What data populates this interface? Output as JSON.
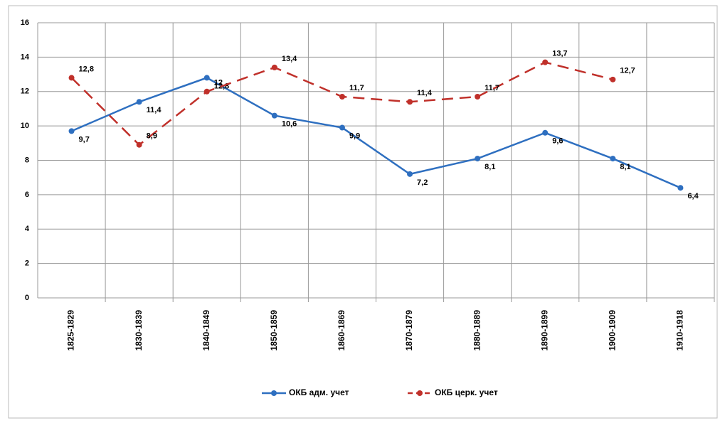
{
  "chart_data": {
    "type": "line",
    "categories": [
      "1825-1829",
      "1830-1839",
      "1840-1849",
      "1850-1859",
      "1860-1869",
      "1870-1879",
      "1880-1889",
      "1890-1899",
      "1900-1909",
      "1910-1918"
    ],
    "series": [
      {
        "name": "ОКБ адм. учет",
        "color": "#2e6fc0",
        "dashed": false,
        "values": [
          9.7,
          11.4,
          12.8,
          10.6,
          9.9,
          7.2,
          8.1,
          9.6,
          8.1,
          6.4
        ],
        "value_labels": [
          "9,7",
          "11,4",
          "12,8",
          "10,6",
          "9,9",
          "7,2",
          "8,1",
          "9,6",
          "8,1",
          "6,4"
        ]
      },
      {
        "name": "ОКБ церк. учет",
        "color": "#c0302a",
        "dashed": true,
        "values": [
          12.8,
          8.9,
          12,
          13.4,
          11.7,
          11.4,
          11.7,
          13.7,
          12.7,
          null
        ],
        "value_labels": [
          "12,8",
          "8,9",
          "12",
          "13,4",
          "11,7",
          "11,4",
          "11,7",
          "13,7",
          "12,7",
          null
        ]
      }
    ],
    "ylim": [
      0,
      16
    ],
    "yticks": [
      0,
      2,
      4,
      6,
      8,
      10,
      12,
      14,
      16
    ],
    "grid": true,
    "legend": "bottom"
  }
}
